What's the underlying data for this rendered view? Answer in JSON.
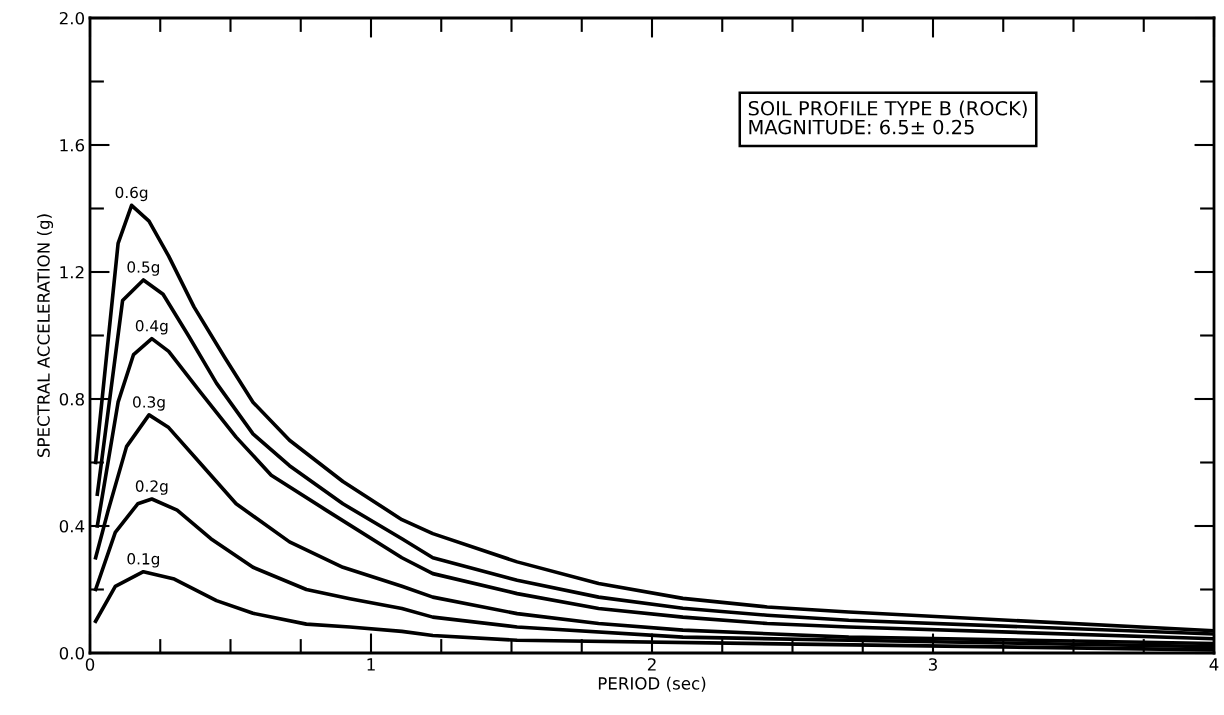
{
  "chart_data": {
    "type": "line",
    "xlabel": "PERIOD (sec)",
    "ylabel": "SPECTRAL ACCELERATION (g)",
    "annotations": [
      "SOIL PROFILE TYPE B (ROCK)\nMAGNITUDE: 6.5± 0.25",
      {
        "text": "0.6g",
        "x": 0.148,
        "y": 1.41
      },
      {
        "text": "0.5g",
        "x": 0.19,
        "y": 1.175
      },
      {
        "text": "0.4g",
        "x": 0.22,
        "y": 0.99
      },
      {
        "text": "0.3g",
        "x": 0.21,
        "y": 0.75
      },
      {
        "text": "0.2g",
        "x": 0.22,
        "y": 0.485
      },
      {
        "text": "0.1g",
        "x": 0.19,
        "y": 0.256
      }
    ],
    "xlim": [
      0,
      4
    ],
    "ylim": [
      0,
      2.0
    ],
    "xticks": [
      0,
      {
        "value": 0.25,
        "label": null
      },
      {
        "value": 0.5,
        "label": null
      },
      {
        "value": 0.75,
        "label": null
      },
      1,
      {
        "value": 1.25,
        "label": null
      },
      {
        "value": 1.5,
        "label": null
      },
      {
        "value": 1.75,
        "label": null
      },
      2,
      {
        "value": 2.25,
        "label": null
      },
      {
        "value": 2.5,
        "label": null
      },
      {
        "value": 2.75,
        "label": null
      },
      3,
      {
        "value": 3.25,
        "label": null
      },
      {
        "value": 3.5,
        "label": null
      },
      {
        "value": 3.75,
        "label": null
      },
      4
    ],
    "yticks": [
      {
        "value": 0,
        "label": "0.0"
      },
      {
        "value": 0.2,
        "label": null
      },
      {
        "value": 0.4,
        "label": "0.4"
      },
      {
        "value": 0.6,
        "label": null
      },
      {
        "value": 0.8,
        "label": "0.8"
      },
      {
        "value": 1.0,
        "label": null
      },
      {
        "value": 1.2,
        "label": "1.2"
      },
      {
        "value": 1.4,
        "label": null
      },
      {
        "value": 1.6,
        "label": "1.6"
      },
      {
        "value": 1.8,
        "label": null
      },
      {
        "value": 2.0,
        "label": "2.0"
      }
    ],
    "grid": false,
    "legend": false,
    "marker": "none",
    "line_style": "solid",
    "series": [
      {
        "color": "#000000",
        "x": [
          0.02,
          0.1,
          0.148,
          0.21,
          0.28,
          0.37,
          0.48,
          0.58,
          0.71,
          0.9,
          1.11,
          1.22,
          1.52,
          1.81,
          2.11,
          2.41,
          2.7,
          4.0
        ],
        "values": [
          0.6,
          1.29,
          1.41,
          1.36,
          1.25,
          1.09,
          0.93,
          0.79,
          0.67,
          0.54,
          0.42,
          0.376,
          0.287,
          0.219,
          0.172,
          0.145,
          0.129,
          0.07
        ]
      },
      {
        "color": "#000000",
        "x": [
          0.026,
          0.116,
          0.19,
          0.26,
          0.35,
          0.45,
          0.58,
          0.71,
          0.9,
          1.11,
          1.22,
          1.52,
          1.81,
          2.11,
          2.41,
          2.7,
          4.0
        ],
        "values": [
          0.5,
          1.11,
          1.175,
          1.13,
          1.0,
          0.85,
          0.69,
          0.59,
          0.47,
          0.36,
          0.3,
          0.229,
          0.176,
          0.141,
          0.119,
          0.103,
          0.06
        ]
      },
      {
        "color": "#000000",
        "x": [
          0.026,
          0.1,
          0.155,
          0.22,
          0.28,
          0.39,
          0.52,
          0.645,
          0.84,
          1.11,
          1.22,
          1.52,
          1.81,
          2.11,
          2.41,
          2.7,
          4.0
        ],
        "values": [
          0.4,
          0.79,
          0.94,
          0.99,
          0.95,
          0.825,
          0.68,
          0.56,
          0.45,
          0.3,
          0.25,
          0.187,
          0.14,
          0.113,
          0.093,
          0.082,
          0.045
        ]
      },
      {
        "color": "#000000",
        "x": [
          0.02,
          0.065,
          0.13,
          0.21,
          0.28,
          0.39,
          0.52,
          0.71,
          0.9,
          1.11,
          1.22,
          1.52,
          1.81,
          2.11,
          2.7,
          4.0
        ],
        "values": [
          0.3,
          0.45,
          0.65,
          0.75,
          0.71,
          0.6,
          0.47,
          0.35,
          0.27,
          0.21,
          0.176,
          0.124,
          0.093,
          0.072,
          0.05,
          0.03
        ]
      },
      {
        "color": "#000000",
        "x": [
          0.02,
          0.09,
          0.17,
          0.22,
          0.31,
          0.43,
          0.58,
          0.77,
          0.925,
          1.11,
          1.22,
          1.52,
          2.11,
          2.7,
          4.0
        ],
        "values": [
          0.2,
          0.38,
          0.47,
          0.485,
          0.45,
          0.36,
          0.27,
          0.2,
          0.171,
          0.14,
          0.113,
          0.082,
          0.05,
          0.04,
          0.02
        ]
      },
      {
        "color": "#000000",
        "x": [
          0.02,
          0.09,
          0.19,
          0.3,
          0.45,
          0.58,
          0.77,
          0.925,
          1.11,
          1.22,
          1.52,
          4.0
        ],
        "values": [
          0.1,
          0.21,
          0.256,
          0.233,
          0.165,
          0.125,
          0.091,
          0.082,
          0.068,
          0.055,
          0.04,
          0.01
        ]
      }
    ]
  }
}
